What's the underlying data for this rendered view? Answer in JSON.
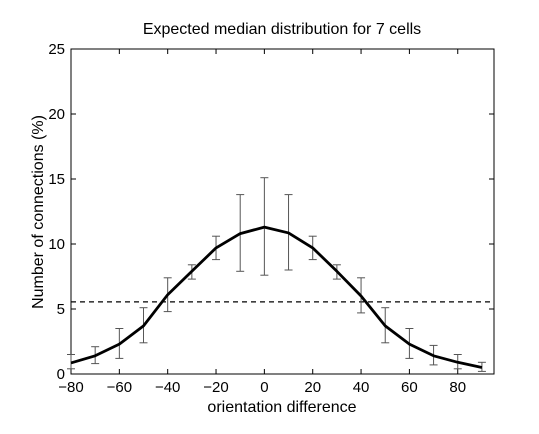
{
  "chart_data": {
    "type": "line",
    "title": "Expected median distribution for 7 cells",
    "xlabel": "orientation difference",
    "ylabel": "Number of connections (%)",
    "xlim": [
      -80,
      95
    ],
    "ylim": [
      0,
      25
    ],
    "xticks": [
      -80,
      -60,
      -40,
      -20,
      0,
      20,
      40,
      60,
      80
    ],
    "yticks": [
      0,
      5,
      10,
      15,
      20,
      25
    ],
    "grid": false,
    "series": [
      {
        "color": "#000000",
        "x": [
          -80,
          -70,
          -60,
          -50,
          -40,
          -30,
          -20,
          -10,
          0,
          10,
          20,
          30,
          40,
          50,
          60,
          70,
          80,
          90
        ],
        "y": [
          0.85,
          1.4,
          2.3,
          3.7,
          6.1,
          7.9,
          9.7,
          10.8,
          11.3,
          10.85,
          9.7,
          7.9,
          6.0,
          3.7,
          2.3,
          1.4,
          0.9,
          0.5
        ],
        "err_low": [
          0.4,
          0.8,
          1.2,
          2.4,
          4.8,
          7.3,
          8.8,
          7.9,
          7.6,
          8.0,
          8.8,
          7.3,
          4.7,
          2.4,
          1.2,
          0.7,
          0.4,
          0.2
        ],
        "err_high": [
          1.5,
          2.1,
          3.5,
          5.1,
          7.4,
          8.4,
          10.6,
          13.8,
          15.1,
          13.8,
          10.6,
          8.4,
          7.4,
          5.1,
          3.5,
          2.2,
          1.5,
          0.9
        ]
      }
    ],
    "reference_line": {
      "y": 5.55,
      "style": "dashed",
      "color": "#000000"
    }
  }
}
